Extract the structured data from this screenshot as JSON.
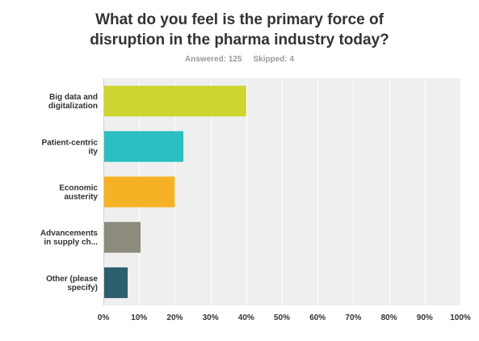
{
  "title_lines": [
    "What do you feel is the primary force of",
    "disruption in the pharma industry today?"
  ],
  "stats": {
    "answered": "Answered: 125",
    "skipped": "Skipped: 4"
  },
  "chart_data": {
    "type": "bar",
    "orientation": "horizontal",
    "title": "What do you feel is the primary force of disruption in the pharma industry today?",
    "categories": [
      [
        "Big data and",
        "digitalization"
      ],
      [
        "Patient-centric",
        "ity"
      ],
      [
        "Economic",
        "austerity"
      ],
      [
        "Advancements",
        "in supply ch..."
      ],
      [
        "Other (please",
        "specify)"
      ]
    ],
    "values": [
      40,
      22.4,
      20,
      10.4,
      6.8
    ],
    "colors": [
      "#cdd631",
      "#2bbfc1",
      "#f5b224",
      "#8c8b7d",
      "#2c5e6d"
    ],
    "xlim": [
      0,
      100
    ],
    "xticks": [
      "0%",
      "10%",
      "20%",
      "30%",
      "40%",
      "50%",
      "60%",
      "70%",
      "80%",
      "90%",
      "100%"
    ],
    "xlabel": "",
    "ylabel": "",
    "grid": true,
    "legend": "none"
  }
}
